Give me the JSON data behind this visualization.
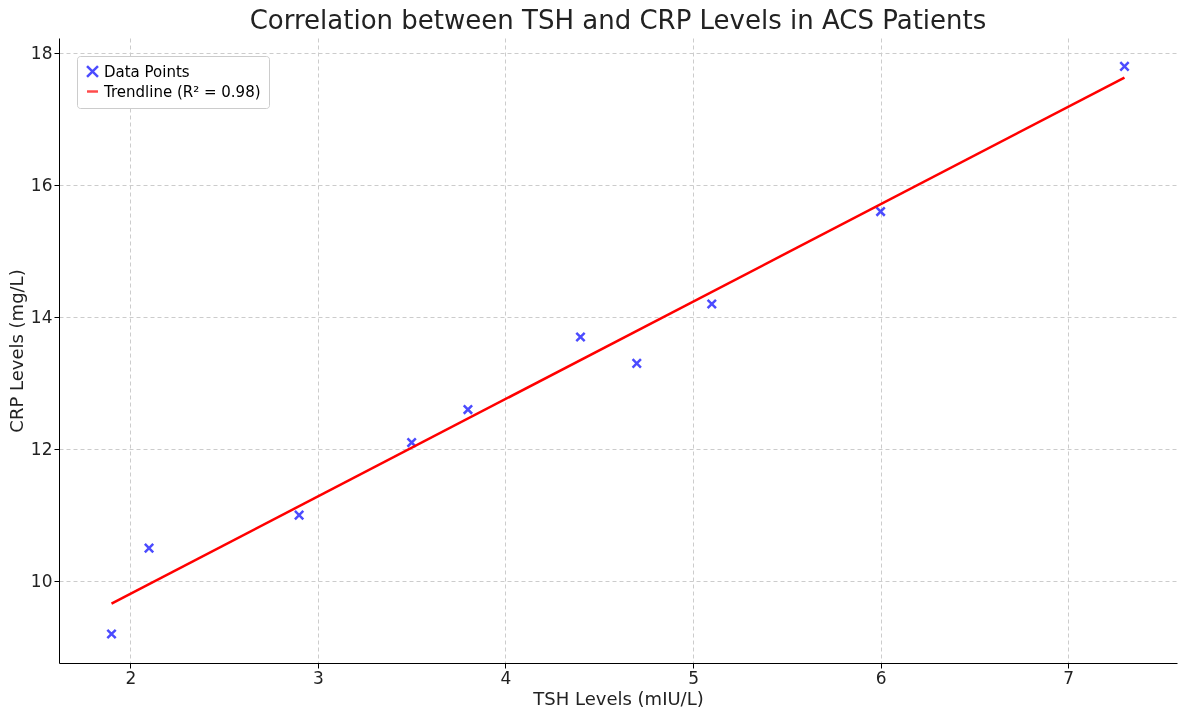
{
  "chart_data": {
    "type": "scatter",
    "title": "Correlation between TSH and CRP Levels in ACS Patients",
    "xlabel": "TSH Levels (mIU/L)",
    "ylabel": "CRP Levels (mg/L)",
    "xlim": [
      1.62,
      7.58
    ],
    "xticks": [
      2,
      3,
      4,
      5,
      6,
      7
    ],
    "ylim": [
      8.76,
      18.23
    ],
    "yticks": [
      10,
      12,
      14,
      16,
      18
    ],
    "grid": true,
    "legend": "top left",
    "series": [
      {
        "name": "Data Points",
        "marker": "cross",
        "color": "#0000ff",
        "x": [
          1.9,
          2.1,
          2.9,
          3.5,
          3.8,
          4.4,
          4.7,
          5.1,
          6.0,
          7.3
        ],
        "values": [
          9.2,
          10.5,
          11.0,
          12.1,
          12.6,
          13.7,
          13.3,
          14.2,
          15.6,
          17.8
        ]
      },
      {
        "name": "Trendline (R² = 0.98)",
        "type": "line",
        "line_style": "solid",
        "color": "#ff0000",
        "x": [
          1.9,
          7.3
        ],
        "values": [
          9.66,
          17.63
        ]
      }
    ]
  }
}
